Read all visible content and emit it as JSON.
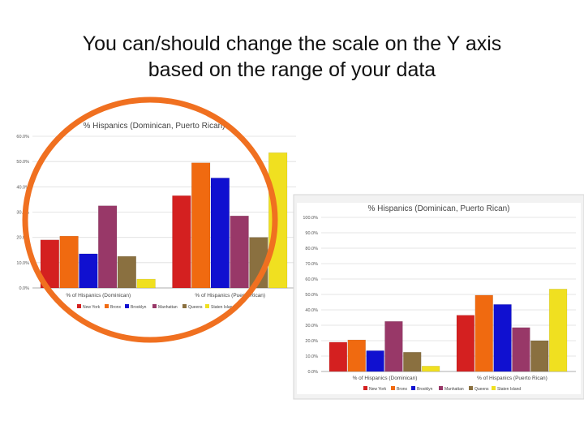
{
  "slide": {
    "title_line1": "You can/should change the scale on the Y axis",
    "title_line2": "based on the range of your data"
  },
  "colors": {
    "New York": "#d42020",
    "Bronx": "#f06a10",
    "Brooklyn": "#1010d0",
    "Manhattan": "#983868",
    "Queens": "#8a7040",
    "Staten Island": "#f0e020",
    "highlight": "#f07020"
  },
  "chart_data": [
    {
      "type": "bar",
      "title": "% Hispanics (Dominican, Puerto Rican)",
      "categories": [
        "% of Hispanics (Dominican)",
        "% of Hispanics (Puerto Rican)"
      ],
      "series": [
        {
          "name": "New York",
          "values": [
            19,
            36.5
          ]
        },
        {
          "name": "Bronx",
          "values": [
            20.5,
            49.5
          ]
        },
        {
          "name": "Brooklyn",
          "values": [
            13.5,
            43.5
          ]
        },
        {
          "name": "Manhattan",
          "values": [
            32.5,
            28.5
          ]
        },
        {
          "name": "Queens",
          "values": [
            12.5,
            20
          ]
        },
        {
          "name": "Staten Island",
          "values": [
            3.5,
            53.5
          ]
        }
      ],
      "ylim": [
        0,
        60
      ],
      "yticks": [
        "60.0%",
        "50.0%",
        "40.0%",
        "30.0%",
        "20.0%",
        "10.0%",
        "0.0%"
      ],
      "grid": true,
      "legend": "bottom"
    },
    {
      "type": "bar",
      "title": "% Hispanics (Dominican, Puerto Rican)",
      "categories": [
        "% of Hispanics (Dominican)",
        "% of Hispanics (Puerto Rican)"
      ],
      "series": [
        {
          "name": "New York",
          "values": [
            19,
            36.5
          ]
        },
        {
          "name": "Bronx",
          "values": [
            20.5,
            49.5
          ]
        },
        {
          "name": "Brooklyn",
          "values": [
            13.5,
            43.5
          ]
        },
        {
          "name": "Manhattan",
          "values": [
            32.5,
            28.5
          ]
        },
        {
          "name": "Queens",
          "values": [
            12.5,
            20
          ]
        },
        {
          "name": "Staten Island",
          "values": [
            3.5,
            53.5
          ]
        }
      ],
      "ylim": [
        0,
        100
      ],
      "yticks": [
        "100.0%",
        "90.0%",
        "80.0%",
        "70.0%",
        "60.0%",
        "50.0%",
        "40.0%",
        "30.0%",
        "20.0%",
        "10.0%",
        "0.0%"
      ],
      "grid": true,
      "legend": "bottom"
    }
  ]
}
